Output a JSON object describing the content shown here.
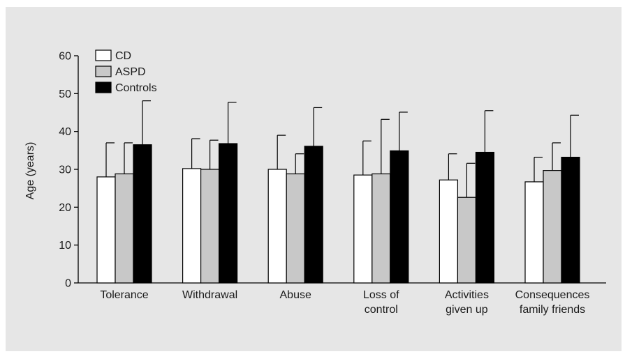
{
  "chart_data": {
    "type": "bar",
    "title": "",
    "xlabel": "",
    "ylabel": "Age (years)",
    "ylim": [
      0,
      60
    ],
    "yticks": [
      0,
      10,
      20,
      30,
      40,
      50,
      60
    ],
    "grid": false,
    "legend_position": "top-left",
    "categories": [
      [
        "Tolerance"
      ],
      [
        "Withdrawal"
      ],
      [
        "Abuse"
      ],
      [
        "Loss of",
        "control"
      ],
      [
        "Activities",
        "given up"
      ],
      [
        "Consequences",
        "family friends"
      ]
    ],
    "series": [
      {
        "name": "CD",
        "color": "#ffffff",
        "values": [
          28,
          30.2,
          30,
          28.5,
          27.2,
          26.7
        ],
        "error_upper": [
          37,
          38.1,
          39,
          37.5,
          34.1,
          33.2
        ]
      },
      {
        "name": "ASPD",
        "color": "#c8c8c8",
        "values": [
          28.8,
          30,
          28.8,
          28.8,
          22.6,
          29.7
        ],
        "error_upper": [
          37,
          37.7,
          34.1,
          43.2,
          31.6,
          37
        ]
      },
      {
        "name": "Controls",
        "color": "#000000",
        "values": [
          36.5,
          36.8,
          36.1,
          34.9,
          34.5,
          33.2
        ],
        "error_upper": [
          48.1,
          47.7,
          46.3,
          45.1,
          45.5,
          44.3
        ]
      }
    ]
  }
}
